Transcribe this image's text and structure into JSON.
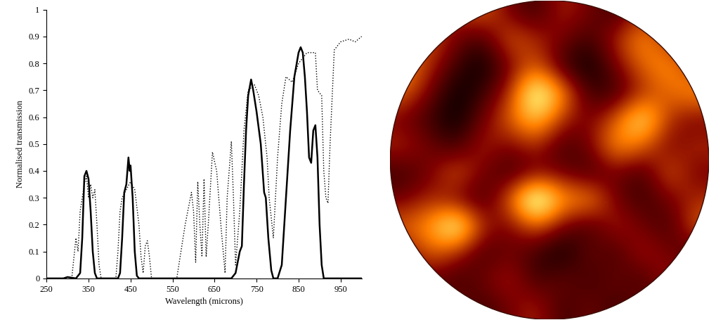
{
  "chart_data": [
    {
      "type": "line",
      "x_label": "Wavelength (microns)",
      "y_label": "Normalised transmission",
      "xlim": [
        250,
        1000
      ],
      "xticks": [
        250,
        350,
        450,
        550,
        650,
        750,
        850,
        950
      ],
      "ylim": [
        0,
        1
      ],
      "yticks": [
        0,
        0.1,
        0.2,
        0.3,
        0.4,
        0.5,
        0.6,
        0.7,
        0.8,
        0.9,
        1
      ],
      "grid": false,
      "series": [
        {
          "color": "#000000",
          "line_style": "solid",
          "x": [
            250,
            290,
            300,
            320,
            330,
            335,
            340,
            345,
            350,
            355,
            360,
            365,
            370,
            420,
            425,
            430,
            435,
            440,
            445,
            448,
            450,
            455,
            460,
            465,
            470,
            690,
            700,
            710,
            715,
            720,
            725,
            730,
            737,
            742,
            750,
            760,
            768,
            772,
            778,
            785,
            790,
            800,
            810,
            820,
            830,
            840,
            850,
            855,
            860,
            865,
            870,
            875,
            880,
            885,
            890,
            895,
            900,
            905,
            910,
            950,
            1000
          ],
          "values": [
            0,
            0,
            0.005,
            0,
            0.02,
            0.15,
            0.38,
            0.4,
            0.37,
            0.25,
            0.1,
            0.02,
            0,
            0,
            0.02,
            0.15,
            0.32,
            0.35,
            0.45,
            0.4,
            0.42,
            0.3,
            0.1,
            0.01,
            0,
            0,
            0.02,
            0.1,
            0.12,
            0.35,
            0.55,
            0.68,
            0.74,
            0.7,
            0.62,
            0.5,
            0.32,
            0.3,
            0.15,
            0.03,
            0,
            0,
            0.05,
            0.3,
            0.55,
            0.75,
            0.84,
            0.86,
            0.84,
            0.75,
            0.62,
            0.45,
            0.43,
            0.55,
            0.57,
            0.45,
            0.2,
            0.05,
            0,
            0,
            0
          ]
        },
        {
          "color": "#000000",
          "line_style": "dotted",
          "x": [
            310,
            320,
            325,
            330,
            340,
            345,
            350,
            355,
            360,
            365,
            370,
            375,
            380,
            415,
            420,
            425,
            430,
            440,
            450,
            460,
            470,
            475,
            480,
            485,
            490,
            495,
            500,
            560,
            580,
            595,
            600,
            605,
            610,
            615,
            620,
            625,
            630,
            635,
            645,
            655,
            665,
            675,
            680,
            690,
            695,
            700,
            710,
            720,
            730,
            745,
            755,
            765,
            775,
            780,
            790,
            795,
            800,
            810,
            820,
            835,
            850,
            870,
            890,
            895,
            905,
            910,
            915,
            920,
            925,
            935,
            950,
            970,
            985,
            1000
          ],
          "values": [
            0,
            0.15,
            0.1,
            0.25,
            0.35,
            0.38,
            0.3,
            0.35,
            0.3,
            0.33,
            0.2,
            0.05,
            0,
            0,
            0.1,
            0.25,
            0.3,
            0.33,
            0.36,
            0.33,
            0.2,
            0.08,
            0.02,
            0.12,
            0.14,
            0.08,
            0,
            0,
            0.2,
            0.32,
            0.25,
            0.06,
            0.36,
            0.2,
            0.08,
            0.37,
            0.08,
            0.2,
            0.47,
            0.4,
            0.2,
            0.02,
            0.3,
            0.51,
            0.3,
            0.05,
            0.25,
            0.55,
            0.7,
            0.72,
            0.68,
            0.6,
            0.45,
            0.3,
            0.15,
            0.3,
            0.45,
            0.65,
            0.75,
            0.73,
            0.8,
            0.84,
            0.84,
            0.7,
            0.68,
            0.4,
            0.3,
            0.28,
            0.5,
            0.85,
            0.88,
            0.89,
            0.88,
            0.9
          ]
        }
      ]
    },
    {
      "type": "heatmap",
      "tick_labels": false,
      "cells": [
        [
          0.2,
          0.3,
          0.4,
          0.5,
          0.3,
          0.2,
          0.4,
          0.3,
          0.2,
          0.4,
          0.3,
          0.2
        ],
        [
          0.3,
          0.5,
          0.3,
          0.2,
          0.5,
          0.4,
          0.3,
          0.2,
          0.4,
          0.6,
          0.4,
          0.3
        ],
        [
          0.6,
          0.4,
          0.2,
          0.1,
          0.3,
          0.5,
          0.2,
          0.1,
          0.3,
          0.5,
          0.6,
          0.4
        ],
        [
          0.5,
          0.3,
          0.1,
          0.2,
          0.4,
          0.9,
          0.6,
          0.2,
          0.2,
          0.4,
          0.5,
          0.6
        ],
        [
          0.3,
          0.2,
          0.1,
          0.3,
          0.5,
          0.7,
          0.4,
          0.3,
          0.5,
          0.8,
          0.4,
          0.3
        ],
        [
          0.4,
          0.3,
          0.2,
          0.4,
          0.3,
          0.4,
          0.2,
          0.3,
          0.6,
          0.5,
          0.3,
          0.4
        ],
        [
          0.2,
          0.3,
          0.5,
          0.3,
          0.2,
          0.3,
          0.3,
          0.2,
          0.3,
          0.2,
          0.5,
          0.3
        ],
        [
          0.3,
          0.4,
          0.3,
          0.2,
          0.5,
          1.0,
          0.6,
          0.6,
          0.3,
          0.2,
          0.3,
          0.4
        ],
        [
          0.5,
          0.6,
          0.9,
          0.4,
          0.3,
          0.5,
          0.3,
          0.2,
          0.4,
          0.3,
          0.2,
          0.5
        ],
        [
          0.3,
          0.5,
          0.4,
          0.2,
          0.3,
          0.2,
          0.1,
          0.3,
          0.2,
          0.4,
          0.3,
          0.2
        ],
        [
          0.2,
          0.3,
          0.2,
          0.3,
          0.4,
          0.2,
          0.3,
          0.2,
          0.3,
          0.2,
          0.4,
          0.3
        ],
        [
          0.1,
          0.2,
          0.3,
          0.2,
          0.3,
          0.4,
          0.2,
          0.3,
          0.2,
          0.3,
          0.2,
          0.1
        ]
      ]
    }
  ]
}
